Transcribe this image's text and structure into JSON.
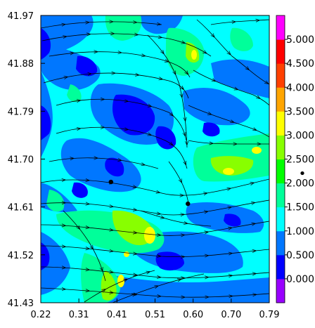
{
  "chart_data": {
    "type": "heatmap",
    "subtype": "filled-contour-with-streamlines",
    "title": "",
    "xlabel": "",
    "ylabel": "",
    "xlim": [
      0.22,
      0.79
    ],
    "ylim": [
      41.43,
      41.97
    ],
    "x_ticks": [
      "0.22",
      "0.31",
      "0.41",
      "0.51",
      "0.60",
      "0.70",
      "0.79"
    ],
    "y_ticks": [
      "41.97",
      "41.88",
      "41.79",
      "41.70",
      "41.61",
      "41.52",
      "41.43"
    ],
    "grid": false,
    "colorbar": {
      "placement": "right",
      "tick_labels": [
        "5.000",
        "4.500",
        "4.000",
        "3.500",
        "3.000",
        "2.500",
        "2.000",
        "1.500",
        "1.000",
        "0.500",
        "0.000"
      ],
      "tick_values": [
        5.0,
        4.5,
        4.0,
        3.5,
        3.0,
        2.5,
        2.0,
        1.5,
        1.0,
        0.5,
        0.0
      ],
      "range": [
        -0.5,
        5.5
      ],
      "colors": [
        "#9900ff",
        "#0000ff",
        "#0077ff",
        "#00ffff",
        "#00ff9a",
        "#00ff00",
        "#88ff00",
        "#ffff00",
        "#ffa500",
        "#ff4000",
        "#ff0000",
        "#ff00ff"
      ],
      "marker": "2.000"
    },
    "points": [
      {
        "x": 0.395,
        "y": 41.657
      },
      {
        "x": 0.587,
        "y": 41.616
      }
    ]
  }
}
